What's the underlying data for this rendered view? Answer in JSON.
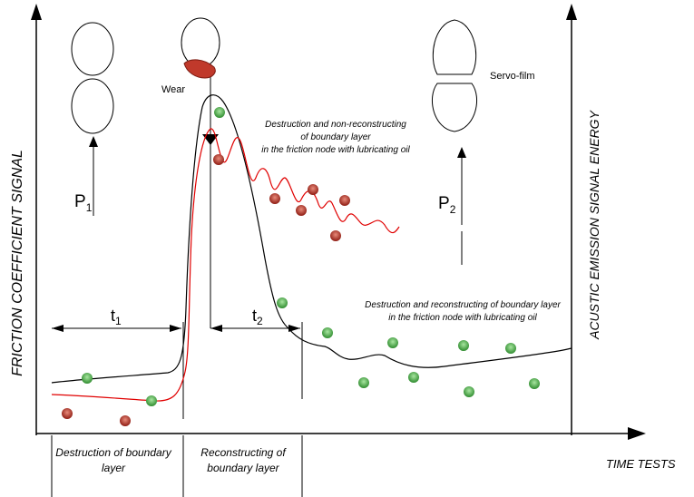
{
  "axes": {
    "left_label": "FRICTION COEFFICIENT SIGNAL",
    "right_label": "ACUSTIC EMISSION SIGNAL ENERGY",
    "x_label": "TIME TESTS"
  },
  "labels": {
    "wear": "Wear",
    "servo_film": "Servo-film",
    "p1_main": "P",
    "p1_sub": "1",
    "p2_main": "P",
    "p2_sub": "2",
    "t1_main": "t",
    "t1_sub": "1",
    "t2_main": "t",
    "t2_sub": "2"
  },
  "annotations": {
    "non_reconstructing": [
      "Destruction and non-reconstructing",
      "of boundary layer",
      "in the friction node with  lubricating oil"
    ],
    "reconstructing": [
      "Destruction and reconstructing of boundary layer",
      "in the friction node with lubricating oil"
    ]
  },
  "phases": {
    "destruction": [
      "Destruction  of boundary",
      "layer"
    ],
    "reconstructing": [
      "Reconstructing of",
      "boundary layer"
    ]
  },
  "colors": {
    "black_curve": "#000000",
    "red_curve": "#e00000",
    "green_dot": "#2e9e2e",
    "red_dot": "#b3261e",
    "wear_patch": "#c0392b"
  }
}
